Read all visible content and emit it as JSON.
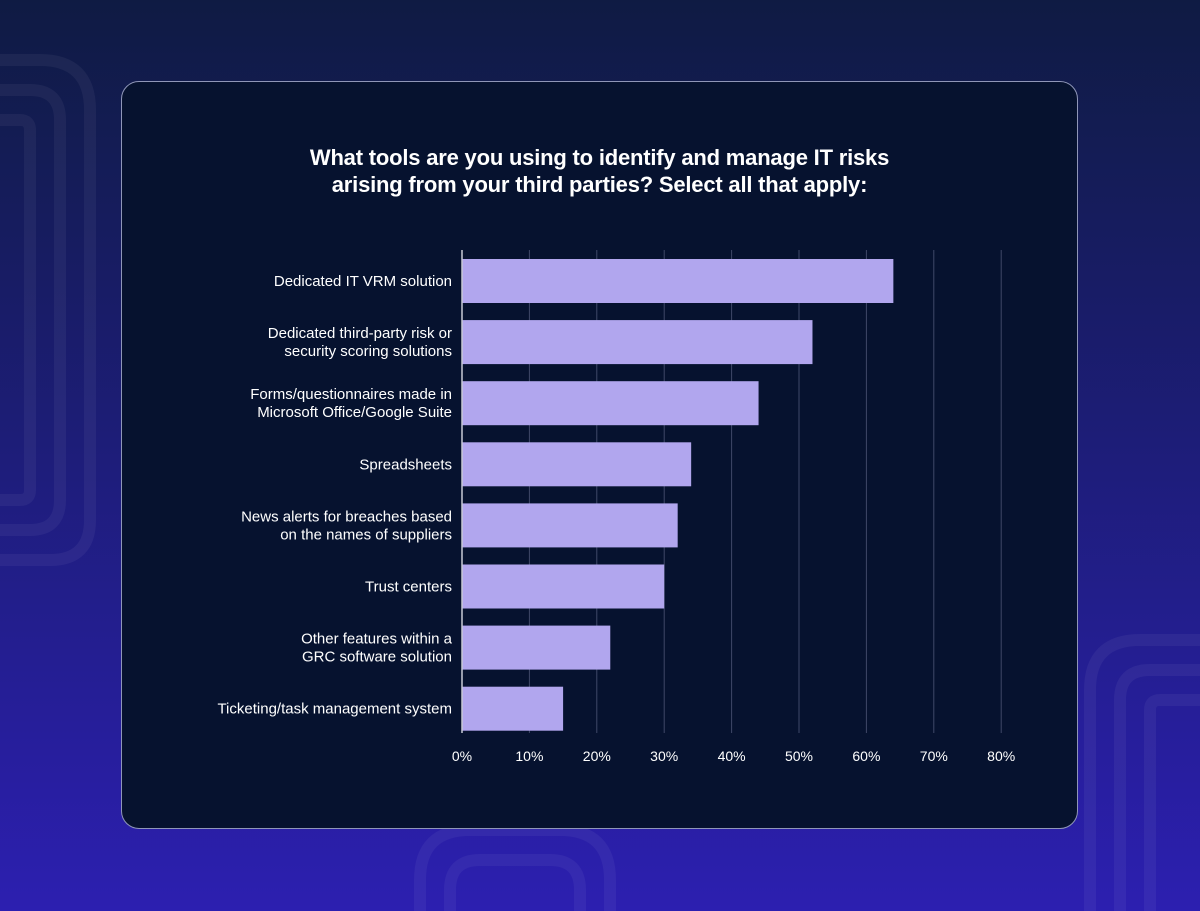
{
  "colors": {
    "background_top": "#0f1b43",
    "background_bottom": "#2c1fb0",
    "card": "#06122f",
    "bar": "#b1a6ee",
    "text": "#ffffff",
    "gridline": "#3f4868"
  },
  "chart_data": {
    "type": "bar",
    "orientation": "horizontal",
    "title": "What tools are you using to identify and manage IT risks\narising from your third parties? Select all that apply:",
    "categories": [
      "Dedicated IT VRM solution",
      "Dedicated third-party risk or\nsecurity scoring solutions",
      "Forms/questionnaires made in\nMicrosoft Office/Google Suite",
      "Spreadsheets",
      "News alerts for breaches based\non the names of suppliers",
      "Trust centers",
      "Other features within a\nGRC software solution",
      "Ticketing/task management system"
    ],
    "values": [
      64,
      52,
      44,
      34,
      32,
      30,
      22,
      15
    ],
    "xlim": [
      0,
      80
    ],
    "xticks": [
      "0%",
      "10%",
      "20%",
      "30%",
      "40%",
      "50%",
      "60%",
      "70%",
      "80%"
    ],
    "grid": true,
    "legend": "none"
  }
}
